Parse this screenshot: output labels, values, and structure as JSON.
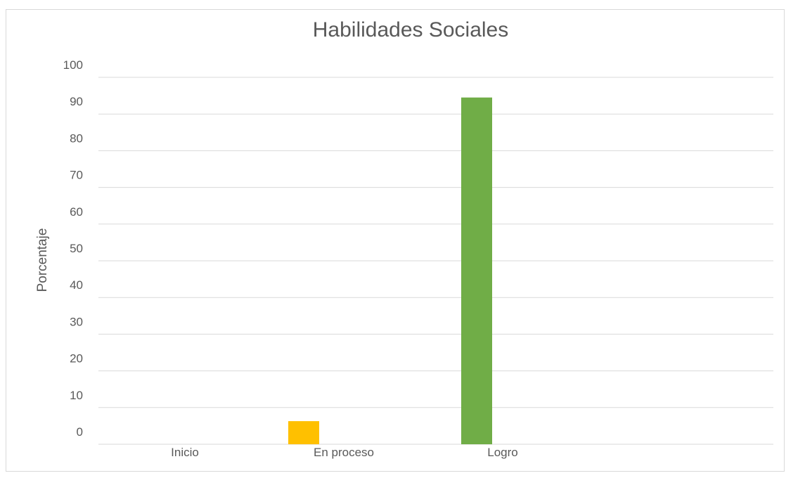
{
  "chart_data": {
    "type": "bar",
    "title": "Habilidades Sociales",
    "xlabel": "",
    "ylabel": "Porcentaje",
    "categories": [
      "Inicio",
      "En proceso",
      "Logro"
    ],
    "values": [
      0,
      6.3,
      94.5
    ],
    "colors": [
      "#4472C4",
      "#FFC000",
      "#70AD47"
    ],
    "ylim": [
      0,
      100
    ],
    "yticks": [
      "0",
      "10",
      "20",
      "30",
      "40",
      "50",
      "60",
      "70",
      "80",
      "90",
      "100"
    ],
    "grid": true,
    "legend": "none"
  }
}
